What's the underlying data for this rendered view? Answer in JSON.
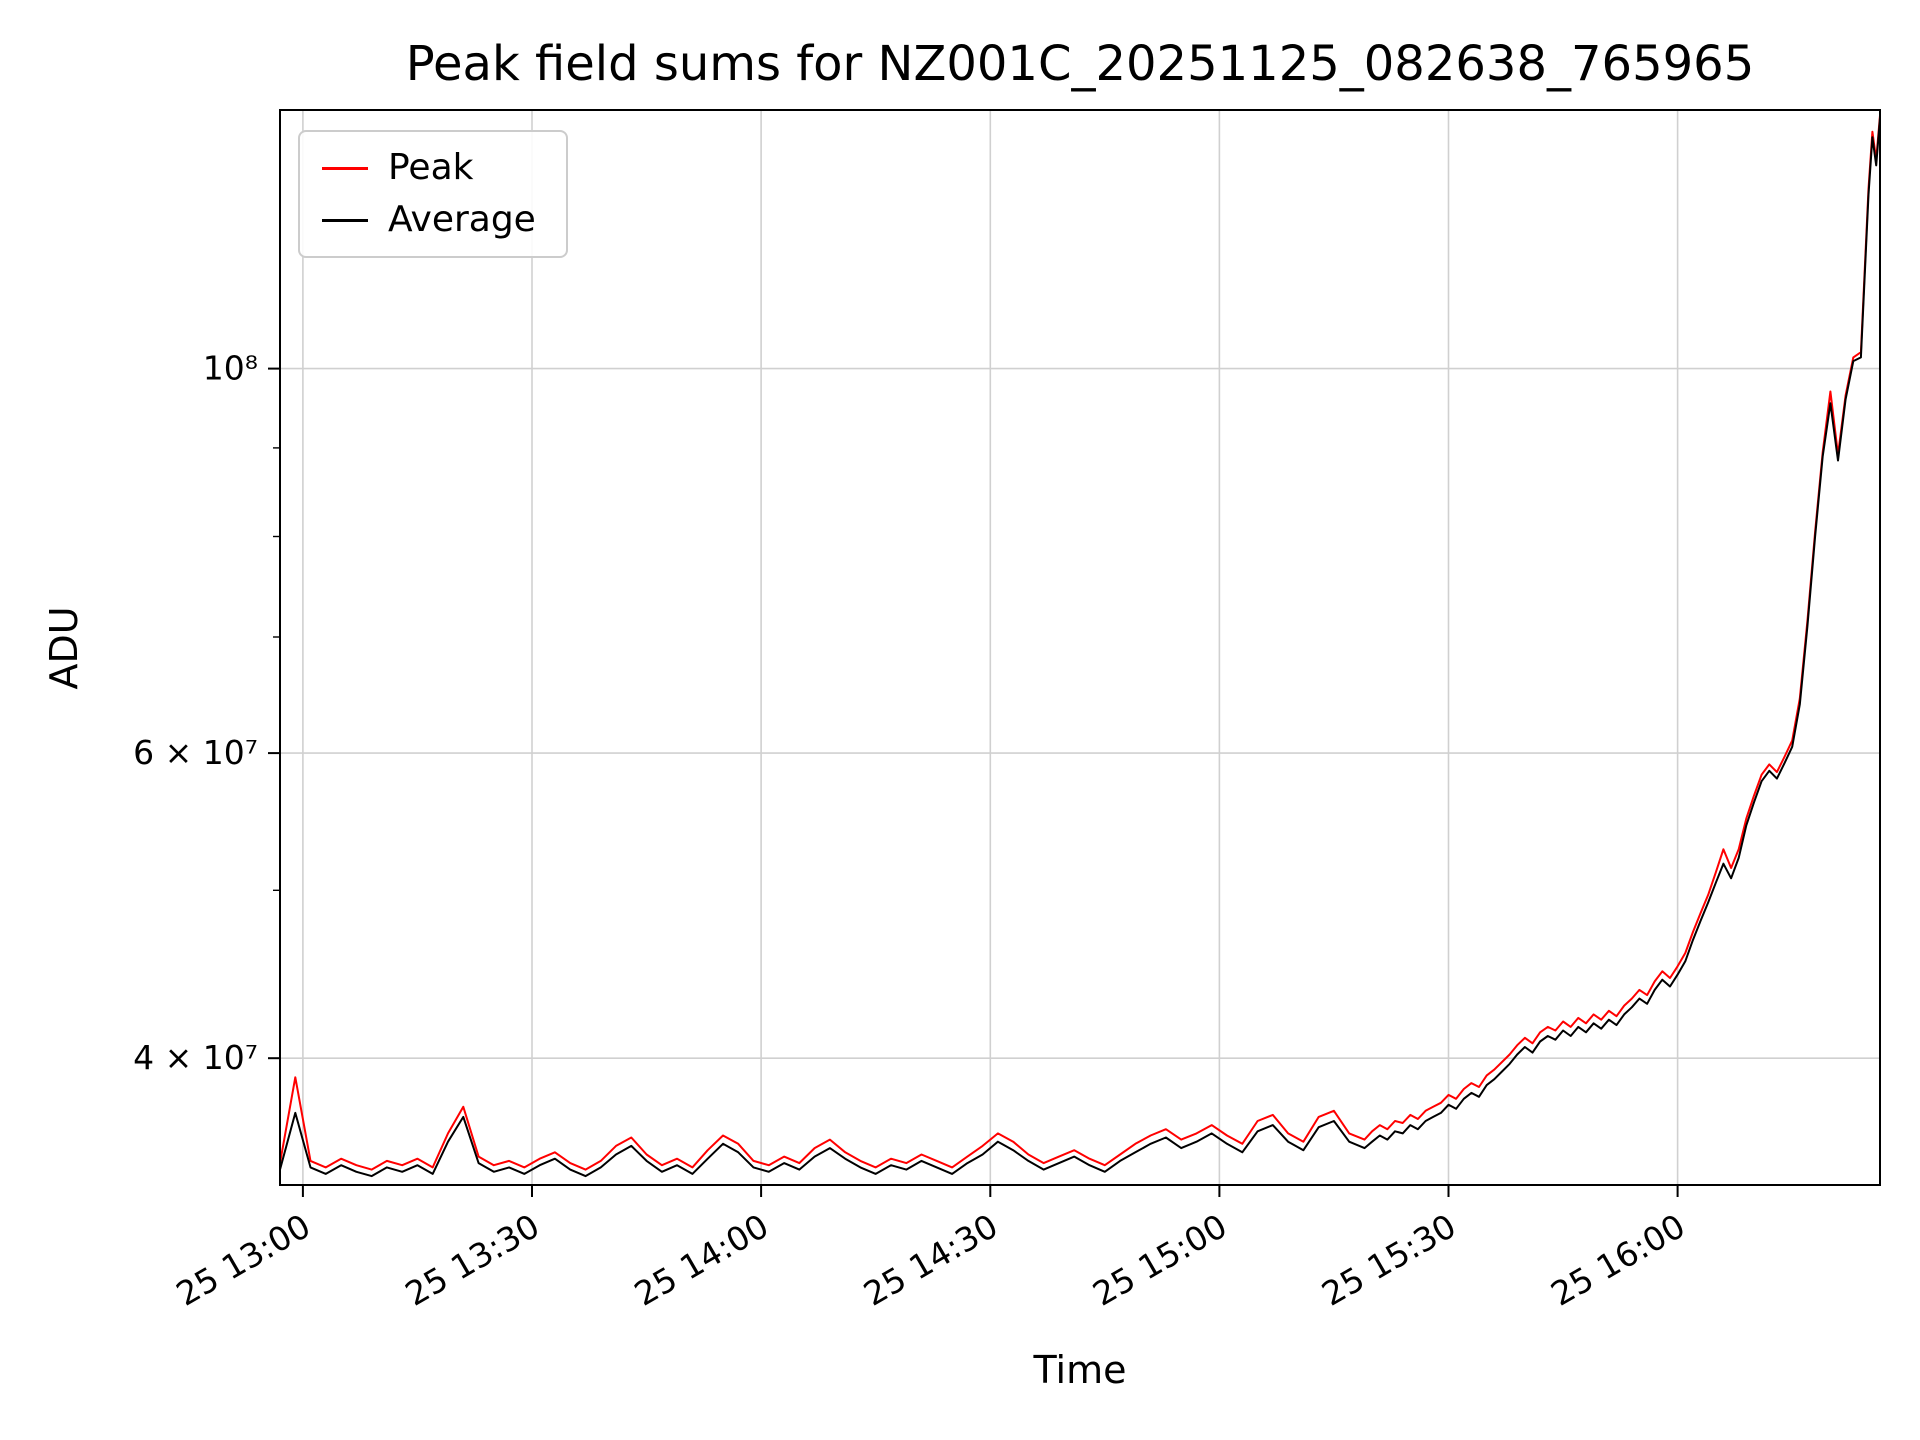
{
  "chart_data": {
    "type": "line",
    "title": "Peak field sums for NZ001C_20251125_082638_765965",
    "xlabel": "Time",
    "ylabel": "ADU",
    "yscale": "log",
    "grid": true,
    "grid_color": "#d0d0d0",
    "ylim": [
      33800000,
      141000000
    ],
    "xlim": [
      777,
      986.5
    ],
    "x_unit": "minutes after 2025-11-25 00:00",
    "value_scale": 10000000,
    "x_ticks": [
      {
        "minute": 780,
        "label": "25 13:00"
      },
      {
        "minute": 810,
        "label": "25 13:30"
      },
      {
        "minute": 840,
        "label": "25 14:00"
      },
      {
        "minute": 870,
        "label": "25 14:30"
      },
      {
        "minute": 900,
        "label": "25 15:00"
      },
      {
        "minute": 930,
        "label": "25 15:30"
      },
      {
        "minute": 960,
        "label": "25 16:00"
      }
    ],
    "y_ticks": [
      {
        "value": 40000000,
        "label": "4 × 10⁷"
      },
      {
        "value": 60000000,
        "label": "6 × 10⁷"
      },
      {
        "value": 100000000,
        "label": "10⁸"
      }
    ],
    "y_minor_ticks": [
      50000000,
      70000000,
      80000000,
      90000000
    ],
    "legend": [
      {
        "name": "Peak",
        "color": "#ff0000"
      },
      {
        "name": "Average",
        "color": "#000000"
      }
    ],
    "x": [
      777,
      779,
      781,
      783,
      785,
      787,
      789,
      791,
      793,
      795,
      797,
      799,
      801,
      803,
      805,
      807,
      809,
      811,
      813,
      815,
      817,
      819,
      821,
      823,
      825,
      827,
      829,
      831,
      833,
      835,
      837,
      839,
      841,
      843,
      845,
      847,
      849,
      851,
      853,
      855,
      857,
      859,
      861,
      863,
      865,
      867,
      869,
      871,
      873,
      875,
      877,
      879,
      881,
      883,
      885,
      887,
      889,
      891,
      893,
      895,
      897,
      899,
      901,
      903,
      905,
      907,
      909,
      911,
      913,
      915,
      917,
      919,
      920,
      921,
      922,
      923,
      924,
      925,
      926,
      927,
      928,
      929,
      930,
      931,
      932,
      933,
      934,
      935,
      936,
      937,
      938,
      939,
      940,
      941,
      942,
      943,
      944,
      945,
      946,
      947,
      948,
      949,
      950,
      951,
      952,
      953,
      954,
      955,
      956,
      957,
      958,
      959,
      960,
      961,
      962,
      963,
      964,
      965,
      966,
      967,
      968,
      969,
      970,
      971,
      972,
      973,
      974,
      975,
      976,
      977,
      978,
      979,
      980,
      981,
      982,
      983,
      984,
      985,
      985.5,
      986,
      986.5
    ],
    "series": [
      {
        "name": "Peak",
        "color": "#ff0000",
        "values": [
          3.48,
          3.9,
          3.49,
          3.46,
          3.5,
          3.47,
          3.45,
          3.49,
          3.47,
          3.5,
          3.46,
          3.62,
          3.75,
          3.51,
          3.47,
          3.49,
          3.46,
          3.5,
          3.53,
          3.48,
          3.45,
          3.49,
          3.56,
          3.6,
          3.52,
          3.47,
          3.5,
          3.46,
          3.54,
          3.61,
          3.57,
          3.49,
          3.47,
          3.51,
          3.48,
          3.55,
          3.59,
          3.53,
          3.49,
          3.46,
          3.5,
          3.48,
          3.52,
          3.49,
          3.46,
          3.51,
          3.56,
          3.62,
          3.58,
          3.52,
          3.48,
          3.51,
          3.54,
          3.5,
          3.47,
          3.52,
          3.57,
          3.61,
          3.64,
          3.59,
          3.62,
          3.66,
          3.61,
          3.57,
          3.68,
          3.71,
          3.62,
          3.58,
          3.7,
          3.73,
          3.62,
          3.59,
          3.63,
          3.66,
          3.64,
          3.68,
          3.67,
          3.71,
          3.69,
          3.73,
          3.75,
          3.77,
          3.81,
          3.79,
          3.84,
          3.87,
          3.85,
          3.91,
          3.94,
          3.98,
          4.02,
          4.07,
          4.11,
          4.08,
          4.14,
          4.17,
          4.15,
          4.2,
          4.17,
          4.22,
          4.19,
          4.24,
          4.21,
          4.26,
          4.23,
          4.29,
          4.33,
          4.38,
          4.35,
          4.43,
          4.49,
          4.45,
          4.52,
          4.6,
          4.73,
          4.85,
          4.97,
          5.12,
          5.28,
          5.15,
          5.28,
          5.5,
          5.67,
          5.83,
          5.91,
          5.85,
          5.97,
          6.1,
          6.45,
          7.15,
          8.05,
          8.95,
          9.7,
          8.92,
          9.65,
          10.15,
          10.22,
          12.7,
          13.7,
          13.2,
          14.0
        ]
      },
      {
        "name": "Average",
        "color": "#000000",
        "values": [
          3.45,
          3.72,
          3.46,
          3.43,
          3.47,
          3.44,
          3.42,
          3.46,
          3.44,
          3.47,
          3.43,
          3.58,
          3.7,
          3.48,
          3.44,
          3.46,
          3.43,
          3.47,
          3.5,
          3.45,
          3.42,
          3.46,
          3.52,
          3.56,
          3.49,
          3.44,
          3.47,
          3.43,
          3.5,
          3.57,
          3.53,
          3.46,
          3.44,
          3.48,
          3.45,
          3.51,
          3.55,
          3.5,
          3.46,
          3.43,
          3.47,
          3.45,
          3.49,
          3.46,
          3.43,
          3.48,
          3.52,
          3.58,
          3.54,
          3.49,
          3.45,
          3.48,
          3.51,
          3.47,
          3.44,
          3.49,
          3.53,
          3.57,
          3.6,
          3.55,
          3.58,
          3.62,
          3.57,
          3.53,
          3.63,
          3.66,
          3.58,
          3.54,
          3.65,
          3.68,
          3.58,
          3.55,
          3.58,
          3.61,
          3.59,
          3.63,
          3.62,
          3.66,
          3.64,
          3.68,
          3.7,
          3.72,
          3.76,
          3.74,
          3.79,
          3.82,
          3.8,
          3.86,
          3.89,
          3.93,
          3.97,
          4.02,
          4.06,
          4.03,
          4.09,
          4.12,
          4.1,
          4.15,
          4.12,
          4.17,
          4.14,
          4.19,
          4.16,
          4.21,
          4.18,
          4.24,
          4.28,
          4.33,
          4.3,
          4.38,
          4.44,
          4.4,
          4.47,
          4.55,
          4.68,
          4.8,
          4.92,
          5.05,
          5.18,
          5.08,
          5.22,
          5.45,
          5.62,
          5.78,
          5.86,
          5.8,
          5.92,
          6.05,
          6.4,
          7.1,
          8.0,
          8.9,
          9.55,
          8.85,
          9.6,
          10.1,
          10.15,
          12.6,
          13.6,
          13.1,
          13.95
        ]
      }
    ]
  }
}
